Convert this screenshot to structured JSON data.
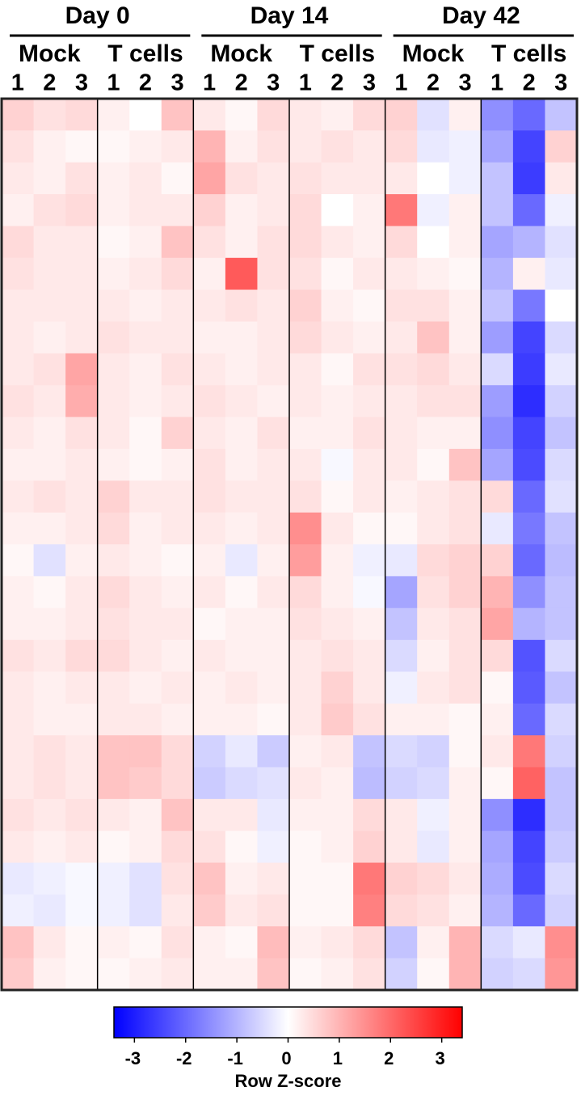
{
  "chart_data": {
    "type": "heatmap",
    "groups": [
      {
        "label": "Day 0",
        "subgroups": [
          "Mock",
          "T cells"
        ]
      },
      {
        "label": "Day 14",
        "subgroups": [
          "Mock",
          "T cells"
        ]
      },
      {
        "label": "Day 42",
        "subgroups": [
          "Mock",
          "T cells"
        ]
      }
    ],
    "columns": [
      "1",
      "2",
      "3",
      "1",
      "2",
      "3",
      "1",
      "2",
      "3",
      "1",
      "2",
      "3",
      "1",
      "2",
      "3",
      "1",
      "2",
      "3"
    ],
    "colors": {
      "low": "#0000ff",
      "mid": "#ffffff",
      "high": "#ff0000"
    },
    "zlim": [
      -3.4,
      3.4
    ],
    "zticks": [
      -3,
      -2,
      -1,
      0,
      1,
      2,
      3
    ],
    "colorbar_label": "Row Z-score",
    "values": [
      [
        0.6,
        0.4,
        0.5,
        0.2,
        0,
        0.8,
        0.3,
        0.1,
        0.5,
        0.3,
        0.2,
        0.5,
        0.6,
        -0.4,
        0.2,
        -1.5,
        -2,
        -0.8
      ],
      [
        0.4,
        0.2,
        0.1,
        0.1,
        0.2,
        0.3,
        1,
        0.2,
        0.4,
        0.3,
        0.4,
        0.3,
        0.5,
        -0.3,
        -0.2,
        -1.2,
        -2.5,
        0.6
      ],
      [
        0.3,
        0.2,
        0.4,
        0.2,
        0.3,
        0.1,
        1.2,
        0.4,
        0.3,
        0.4,
        0.3,
        0.3,
        0.3,
        0,
        -0.2,
        -0.8,
        -2.6,
        0.3
      ],
      [
        0.2,
        0.4,
        0.5,
        0.2,
        0.3,
        0.3,
        0.6,
        0.2,
        0.3,
        0.5,
        0,
        0.2,
        1.8,
        -0.2,
        0.2,
        -0.8,
        -2,
        -0.2
      ],
      [
        0.5,
        0.3,
        0.3,
        0.1,
        0.2,
        0.8,
        0.4,
        0.2,
        0.4,
        0.5,
        0.3,
        0.2,
        0.5,
        0,
        0.2,
        -1.2,
        -1,
        -0.4
      ],
      [
        0.4,
        0.3,
        0.3,
        0.2,
        0.3,
        0.5,
        0.2,
        2.2,
        0.4,
        0.4,
        0.1,
        0.3,
        0.3,
        0.2,
        0.1,
        -1,
        0.2,
        -0.3
      ],
      [
        0.3,
        0.3,
        0.3,
        0.3,
        0.2,
        0.3,
        0.3,
        0.4,
        0.3,
        0.6,
        0.2,
        0.1,
        0.4,
        0.4,
        0.2,
        -0.8,
        -1.8,
        0
      ],
      [
        0.3,
        0.2,
        0.3,
        0.4,
        0.3,
        0.3,
        0.2,
        0.2,
        0.3,
        0.5,
        0.3,
        0.2,
        0.3,
        0.8,
        0.2,
        -1.3,
        -2.5,
        -0.5
      ],
      [
        0.3,
        0.4,
        1.2,
        0.3,
        0.2,
        0.4,
        0.3,
        0.2,
        0.3,
        0.3,
        0.1,
        0.4,
        0.4,
        0.5,
        0.3,
        -0.5,
        -2.6,
        -0.3
      ],
      [
        0.4,
        0.3,
        1.1,
        0.3,
        0.2,
        0.3,
        0.4,
        0.3,
        0.2,
        0.3,
        0.2,
        0.3,
        0.3,
        0.4,
        0.4,
        -1.3,
        -2.8,
        -0.6
      ],
      [
        0.3,
        0.2,
        0.4,
        0.3,
        0.1,
        0.6,
        0.3,
        0.2,
        0.4,
        0.2,
        0.2,
        0.4,
        0.3,
        0.2,
        0.2,
        -1.5,
        -2.5,
        -0.8
      ],
      [
        0.2,
        0.2,
        0.3,
        0.2,
        0.1,
        0.2,
        0.4,
        0.2,
        0.3,
        0.3,
        -0.1,
        0.3,
        0.3,
        0.1,
        0.8,
        -1.2,
        -2.4,
        -0.5
      ],
      [
        0.3,
        0.4,
        0.3,
        0.6,
        0.3,
        0.3,
        0.4,
        0.3,
        0.3,
        0.4,
        0.1,
        0.3,
        0.2,
        0.3,
        0.4,
        0.5,
        -2,
        -0.4
      ],
      [
        0.2,
        0.2,
        0.3,
        0.5,
        0.2,
        0.3,
        0.3,
        0.2,
        0.3,
        1.5,
        0.3,
        0.1,
        0.1,
        0.3,
        0.4,
        -0.3,
        -1.8,
        -0.8
      ],
      [
        0.1,
        -0.4,
        0.2,
        0.3,
        0.2,
        0.1,
        0.2,
        -0.3,
        0.2,
        1.3,
        0.2,
        -0.2,
        -0.3,
        0.5,
        0.6,
        0.6,
        -2,
        -0.9
      ],
      [
        0.2,
        0.1,
        0.3,
        0.5,
        0.3,
        0.2,
        0.3,
        0.1,
        0.3,
        0.5,
        0.2,
        -0.1,
        -1.2,
        0.4,
        0.6,
        1.0,
        -1.5,
        -0.8
      ],
      [
        0.2,
        0.2,
        0.3,
        0.4,
        0.3,
        0.3,
        0.1,
        0.2,
        0.2,
        0.4,
        0.3,
        0.2,
        -0.8,
        0.3,
        0.4,
        1.2,
        -1,
        -0.8
      ],
      [
        0.4,
        0.3,
        0.5,
        0.5,
        0.3,
        0.2,
        0.3,
        0.2,
        0.2,
        0.3,
        0.4,
        0.3,
        -0.5,
        0.2,
        0.4,
        0.5,
        -2.3,
        -0.5
      ],
      [
        0.3,
        0.2,
        0.3,
        0.3,
        0.2,
        0.3,
        0.2,
        0.3,
        0.2,
        0.3,
        0.6,
        0.3,
        -0.2,
        0.3,
        0.4,
        0.1,
        -2.2,
        -0.8
      ],
      [
        0.3,
        0.2,
        0.2,
        0.3,
        0.3,
        0.2,
        0.2,
        0.2,
        0.1,
        0.3,
        0.7,
        0.4,
        0.2,
        0.2,
        0.1,
        0.2,
        -2,
        -0.5
      ],
      [
        0.3,
        0.4,
        0.3,
        0.8,
        0.8,
        0.5,
        -0.6,
        -0.3,
        -0.7,
        0.2,
        0.3,
        -0.8,
        -0.5,
        -0.6,
        0.1,
        0.3,
        1.8,
        -0.6
      ],
      [
        0.3,
        0.4,
        0.3,
        0.8,
        0.7,
        0.5,
        -0.7,
        -0.5,
        -0.4,
        0.3,
        0.2,
        -0.9,
        -0.6,
        -0.5,
        0.2,
        0.1,
        2.1,
        -0.8
      ],
      [
        0.4,
        0.3,
        0.4,
        0.3,
        0.2,
        0.8,
        0.3,
        0.3,
        -0.3,
        0.2,
        0.2,
        0.5,
        0.3,
        -0.2,
        0.2,
        -1.5,
        -2.8,
        -0.8
      ],
      [
        0.3,
        0.2,
        0.3,
        0.1,
        0.2,
        0.5,
        0.4,
        0.1,
        -0.2,
        0.1,
        0.2,
        0.6,
        0.3,
        -0.3,
        0.2,
        -1.2,
        -2.5,
        -0.7
      ],
      [
        -0.3,
        -0.2,
        -0.1,
        -0.2,
        -0.4,
        0.4,
        0.8,
        0.2,
        0.3,
        0.1,
        0.1,
        1.8,
        0.6,
        0.5,
        0.3,
        -1.1,
        -2.4,
        -0.5
      ],
      [
        -0.2,
        -0.3,
        -0.1,
        -0.2,
        -0.4,
        0.3,
        0.7,
        0.3,
        0.4,
        0.1,
        0.1,
        1.7,
        0.5,
        0.4,
        0.2,
        -1,
        -2,
        -0.6
      ],
      [
        0.8,
        0.3,
        0.1,
        0.2,
        0.1,
        0.4,
        0.2,
        0.1,
        0.9,
        0.2,
        0.3,
        0.5,
        -0.8,
        0.2,
        1.0,
        -0.5,
        -0.3,
        1.5
      ],
      [
        0.7,
        0.2,
        0.1,
        0.1,
        0.2,
        0.3,
        0.2,
        0.2,
        0.8,
        0.1,
        0.2,
        0.4,
        -0.6,
        0.1,
        1.0,
        -0.6,
        -0.5,
        1.4
      ]
    ]
  }
}
